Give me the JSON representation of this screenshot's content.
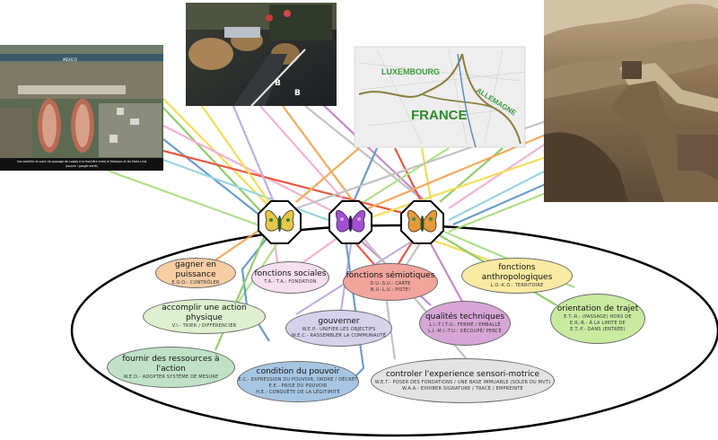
{
  "photos": {
    "satellite_caption_line1": "Vue satellite du pont de passage de Lowdo à la frontière entre le Mexique et les Etats-Unis",
    "satellite_caption_line2": "(source : google earth)",
    "satellite_place_label": "MEXICO",
    "map_label_luxembourg": "LUXEMBOURG",
    "map_label_allemagne": "ALLEMAGNE",
    "map_label_france": "FRANCE",
    "border_letter_b_left": "B",
    "border_letter_b_right": "B"
  },
  "nodes": [
    {
      "id": "gagner",
      "title": "gagner en puissance",
      "sub1": "E.O.O.- CONTRÔLER",
      "sub2": "",
      "fill": "#f7cda4"
    },
    {
      "id": "sociales",
      "title": "fonctions sociales",
      "sub1": "T.A.- T.A.: FONDATION",
      "sub2": "",
      "fill": "#f6dff0"
    },
    {
      "id": "semiotiques",
      "title": "fonctions sémiotiques",
      "sub1": "D.U.-S.U.: CARTE",
      "sub2": "N.U.-L.U.: PISTE!",
      "fill": "#f2a59d"
    },
    {
      "id": "anthropologiques",
      "title": "fonctions anthropologiques",
      "sub1": "L.O.-K.O.: TERRITOIRE",
      "sub2": "",
      "fill": "#fbeaa2"
    },
    {
      "id": "physique",
      "title": "accomplir une action physique",
      "sub1": "V.I.- TRIER / DIFFÉRENCIER",
      "sub2": "",
      "fill": "#ddf0cf"
    },
    {
      "id": "gouverner",
      "title": "gouverner",
      "sub1": "W.E.P.- UNIFIER LES OBJECTIFS",
      "sub2": "W.E.C.- RASSEMBLER LA COMMUNAUTÉ",
      "fill": "#d6d2ec"
    },
    {
      "id": "techniques",
      "title": "qualités techniques",
      "sub1": "L.I.-T.I.T.U.: FERMÉ / EMBALLÉ",
      "sub2": "L.I.-M.I.-T.U.: DÉCOUPÉ/ PERCÉ",
      "fill": "#d7a6d6"
    },
    {
      "id": "trajet",
      "title": "orientation de trajet",
      "sub1": "E.T.-R.- (PASSAGE) HORS DE",
      "sub2": "E.R.-R.- À LA LIMITE DE",
      "sub3": "E.T.-F.- DANS (ENTRÉE)",
      "fill": "#c9eba0"
    },
    {
      "id": "ressources",
      "title": "fournir des ressources à l'action",
      "sub1": "W.E.D.- ADOPTER SYSTÈME DE MESURE",
      "sub2": "",
      "fill": "#bfe2c6"
    },
    {
      "id": "condition",
      "title": "condition du pouvoir",
      "sub1": "E.C.- EXPRESSION DU POUVOIR, ORDRE / DÉCRET",
      "sub2": "E.E.- PRISE DU POUVOIR",
      "sub3": "H.E.- CONQUÊTE DE LA LÉGITIMITÉ",
      "fill": "#a6c6e3"
    },
    {
      "id": "sensori",
      "title": "controler l'experience sensori-motrice",
      "sub1": "W.E.T.- POSER DES FONDATIONS / UNE BASE IMMUABLE (SOLER DU MVT)",
      "sub2": "W.A.A.- EXHIBER SIGNATURE / TRACE / EMPREINTE",
      "fill": "#e3e3e3"
    }
  ],
  "colors": {
    "outline": "#000000",
    "octagon_fill": "#ffffff",
    "line_palette": [
      "#f4a24a",
      "#f1a9d0",
      "#e8482e",
      "#f4d944",
      "#a5dd7e",
      "#b9a6e0",
      "#c37cc7",
      "#86c95e",
      "#3aa84a",
      "#5a93c7",
      "#bdbdbd",
      "#8ed0dc"
    ]
  },
  "icons": [
    "butterfly-icon-yellow",
    "butterfly-icon-purple",
    "butterfly-icon-orange"
  ]
}
